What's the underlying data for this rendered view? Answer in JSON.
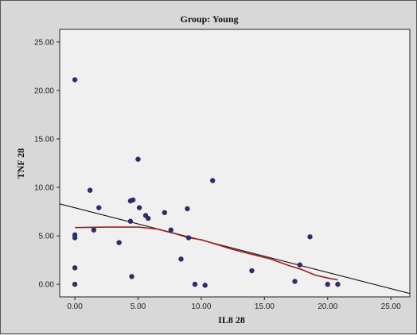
{
  "chart_data": {
    "type": "scatter",
    "title": "Group:  Young",
    "xlabel": "IL8   28",
    "ylabel": "TNF   28",
    "xlim": [
      -1.2,
      26.5
    ],
    "ylim": [
      -1.3,
      26.3
    ],
    "x_ticks": [
      0,
      5,
      10,
      15,
      20,
      25
    ],
    "x_tick_labels": [
      "0.00",
      "5.00",
      "10.00",
      "15.00",
      "20.00",
      "25.00"
    ],
    "y_ticks": [
      0,
      5,
      10,
      15,
      20,
      25
    ],
    "y_tick_labels": [
      "0.00",
      "5.00",
      "10.00",
      "15.00",
      "20.00",
      "25.00"
    ],
    "grid": false,
    "colors": {
      "plot_background": "#f0f0f0",
      "outer_background": "#d8d8d8",
      "points": "#2e2c6e",
      "fit_line": "#111111",
      "loess_line": "#a01e1e"
    },
    "points": [
      {
        "x": 0.0,
        "y": 21.1
      },
      {
        "x": 0.0,
        "y": 5.1
      },
      {
        "x": 0.0,
        "y": 4.8
      },
      {
        "x": 0.0,
        "y": 1.7
      },
      {
        "x": 0.0,
        "y": 0.0
      },
      {
        "x": 1.2,
        "y": 9.7
      },
      {
        "x": 1.5,
        "y": 5.6
      },
      {
        "x": 1.9,
        "y": 7.9
      },
      {
        "x": 3.5,
        "y": 4.3
      },
      {
        "x": 4.4,
        "y": 8.6
      },
      {
        "x": 4.6,
        "y": 8.7
      },
      {
        "x": 4.4,
        "y": 6.5
      },
      {
        "x": 4.5,
        "y": 0.8
      },
      {
        "x": 5.0,
        "y": 12.9
      },
      {
        "x": 5.1,
        "y": 7.9
      },
      {
        "x": 5.6,
        "y": 7.1
      },
      {
        "x": 5.8,
        "y": 6.8
      },
      {
        "x": 7.1,
        "y": 7.4
      },
      {
        "x": 7.6,
        "y": 5.6
      },
      {
        "x": 8.4,
        "y": 2.6
      },
      {
        "x": 8.9,
        "y": 7.8
      },
      {
        "x": 9.0,
        "y": 4.8
      },
      {
        "x": 9.5,
        "y": 0.0
      },
      {
        "x": 10.3,
        "y": -0.1
      },
      {
        "x": 10.9,
        "y": 10.7
      },
      {
        "x": 14.0,
        "y": 1.4
      },
      {
        "x": 17.4,
        "y": 0.3
      },
      {
        "x": 17.8,
        "y": 2.0
      },
      {
        "x": 18.6,
        "y": 4.9
      },
      {
        "x": 20.0,
        "y": 0.0
      },
      {
        "x": 20.8,
        "y": 0.0
      }
    ],
    "fit_line": [
      {
        "x": -1.2,
        "y": 8.3
      },
      {
        "x": 26.5,
        "y": -0.95
      }
    ],
    "loess_line": [
      {
        "x": 0.0,
        "y": 5.85
      },
      {
        "x": 2.5,
        "y": 5.9
      },
      {
        "x": 5.0,
        "y": 5.9
      },
      {
        "x": 6.5,
        "y": 5.7
      },
      {
        "x": 8.0,
        "y": 5.2
      },
      {
        "x": 9.0,
        "y": 4.8
      },
      {
        "x": 10.0,
        "y": 4.6
      },
      {
        "x": 11.0,
        "y": 4.2
      },
      {
        "x": 12.5,
        "y": 3.6
      },
      {
        "x": 14.0,
        "y": 3.1
      },
      {
        "x": 15.5,
        "y": 2.6
      },
      {
        "x": 17.0,
        "y": 1.9
      },
      {
        "x": 18.0,
        "y": 1.5
      },
      {
        "x": 19.0,
        "y": 0.95
      },
      {
        "x": 20.0,
        "y": 0.65
      },
      {
        "x": 20.8,
        "y": 0.45
      }
    ]
  }
}
